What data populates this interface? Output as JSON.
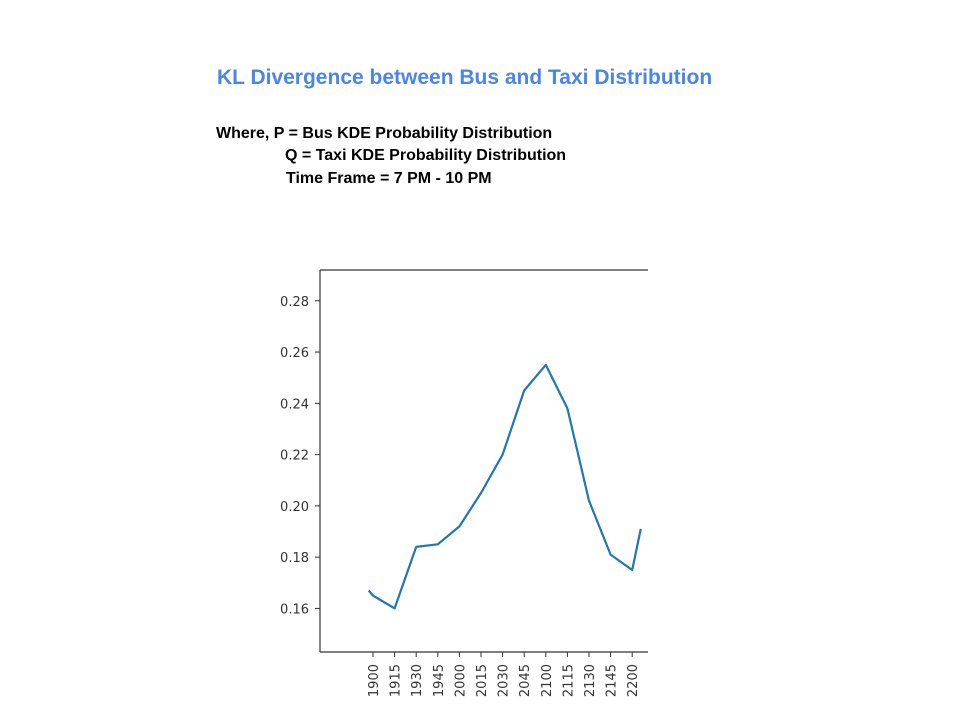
{
  "header": {
    "title": "KL Divergence between Bus and Taxi Distribution",
    "lines": [
      "Where, P =  Bus KDE Probability Distribution",
      "Q = Taxi KDE Probability Distribution",
      "Time Frame = 7 PM - 10 PM"
    ]
  },
  "chart_data": {
    "type": "line",
    "title": "",
    "xlabel": "",
    "ylabel": "",
    "categories": [
      "1900",
      "1915",
      "1930",
      "1945",
      "2000",
      "2015",
      "2030",
      "2045",
      "2100",
      "2115",
      "2130",
      "2145",
      "2200"
    ],
    "y_ticks": [
      "0.16",
      "0.18",
      "0.20",
      "0.22",
      "0.24",
      "0.26",
      "0.28"
    ],
    "ylim": [
      0.143,
      0.292
    ],
    "grid": false,
    "line_color": "#1f77b4",
    "series": [
      {
        "name": "",
        "x": [
          -0.2,
          0,
          1,
          2,
          3,
          4,
          5,
          6,
          7,
          8,
          9,
          10,
          11,
          12,
          12.4
        ],
        "values": [
          0.167,
          0.165,
          0.16,
          0.184,
          0.185,
          0.192,
          0.205,
          0.22,
          0.245,
          0.255,
          0.238,
          0.202,
          0.181,
          0.175,
          0.191
        ]
      }
    ]
  }
}
